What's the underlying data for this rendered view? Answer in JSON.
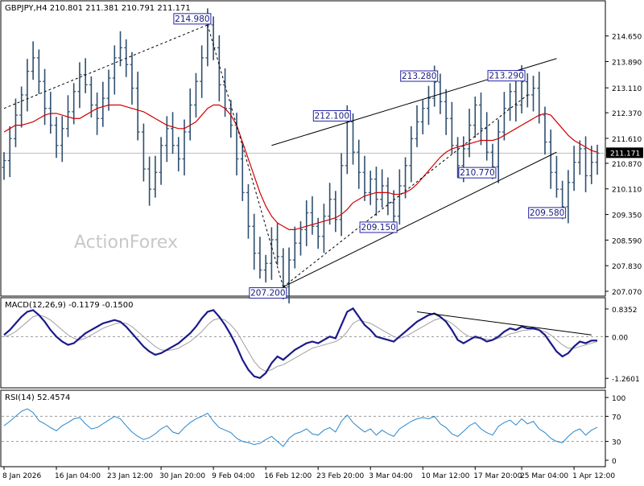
{
  "chart_data": [
    {
      "type": "ohlc",
      "title": "GBPJPY,H4  210.801 211.381 210.791 211.171",
      "watermark": "ActionForex",
      "ylim": [
        207.07,
        215.24
      ],
      "ticks": [
        "214.650",
        "213.890",
        "213.110",
        "212.370",
        "211.610",
        "210.870",
        "210.110",
        "209.350",
        "208.590",
        "207.830",
        "207.070"
      ],
      "current_price": "211.171",
      "colors": {
        "bars": "#2f4f6f",
        "ma": "#d10000",
        "trendline": "#000000",
        "label_border": "#2222aa"
      },
      "closes": [
        210.95,
        211.6,
        212.3,
        212.9,
        213.6,
        214.0,
        213.3,
        212.5,
        212.0,
        211.4,
        211.9,
        212.4,
        213.0,
        213.5,
        213.2,
        212.6,
        212.2,
        212.8,
        213.4,
        214.0,
        214.3,
        213.8,
        213.1,
        211.8,
        210.7,
        210.1,
        210.6,
        211.4,
        211.9,
        211.4,
        211.0,
        211.8,
        212.6,
        213.3,
        214.0,
        214.98,
        214.3,
        213.2,
        212.5,
        212.0,
        211.0,
        210.0,
        209.0,
        208.2,
        207.7,
        207.9,
        208.6,
        208.1,
        207.2,
        208.0,
        208.5,
        208.9,
        209.4,
        209.0,
        208.7,
        209.3,
        209.8,
        209.2,
        210.8,
        212.1,
        211.2,
        210.6,
        210.0,
        210.4,
        209.8,
        210.2,
        209.7,
        209.3,
        210.2,
        210.8,
        211.6,
        212.1,
        212.5,
        212.8,
        213.28,
        212.7,
        212.2,
        211.4,
        210.8,
        211.3,
        212.0,
        212.6,
        211.9,
        211.2,
        210.77,
        211.8,
        212.5,
        213.0,
        212.6,
        213.29,
        212.9,
        213.1,
        212.3,
        211.5,
        210.6,
        210.1,
        209.58,
        210.3,
        210.9,
        211.3,
        210.5,
        210.9,
        211.171
      ],
      "ma": [
        211.8,
        211.9,
        212.0,
        212.0,
        212.05,
        212.1,
        212.2,
        212.3,
        212.35,
        212.35,
        212.3,
        212.25,
        212.2,
        212.2,
        212.3,
        212.4,
        212.5,
        212.55,
        212.6,
        212.6,
        212.6,
        212.55,
        212.5,
        212.45,
        212.4,
        212.3,
        212.2,
        212.1,
        212.0,
        211.95,
        211.9,
        211.9,
        212.0,
        212.1,
        212.3,
        212.5,
        212.6,
        212.6,
        212.5,
        212.3,
        212.0,
        211.5,
        211.0,
        210.5,
        210.0,
        209.6,
        209.3,
        209.1,
        209.0,
        208.9,
        208.9,
        208.95,
        209.0,
        209.05,
        209.1,
        209.15,
        209.2,
        209.25,
        209.35,
        209.5,
        209.7,
        209.8,
        209.9,
        209.95,
        210.0,
        210.0,
        210.0,
        209.95,
        209.95,
        210.0,
        210.1,
        210.25,
        210.45,
        210.65,
        210.85,
        211.05,
        211.2,
        211.3,
        211.35,
        211.4,
        211.45,
        211.5,
        211.55,
        211.55,
        211.55,
        211.6,
        211.7,
        211.8,
        211.9,
        212.0,
        212.1,
        212.2,
        212.3,
        212.35,
        212.3,
        212.1,
        211.9,
        211.7,
        211.55,
        211.45,
        211.35,
        211.25,
        211.2
      ],
      "annotations": [
        {
          "label": "214.980",
          "x_index": 35,
          "value": 214.98
        },
        {
          "label": "212.100",
          "x_index": 59,
          "value": 212.1
        },
        {
          "label": "213.280",
          "x_index": 74,
          "value": 213.28
        },
        {
          "label": "213.290",
          "x_index": 89,
          "value": 213.29
        },
        {
          "label": "210.770",
          "x_index": 84,
          "value": 210.77
        },
        {
          "label": "209.150",
          "x_index": 67,
          "value": 209.15
        },
        {
          "label": "209.580",
          "x_index": 96,
          "value": 209.58
        },
        {
          "label": "207.200",
          "x_index": 48,
          "value": 207.2
        }
      ],
      "trendlines": [
        {
          "style": "dashed",
          "from": {
            "x_index": 0,
            "value": 212.5
          },
          "to": {
            "x_index": 35,
            "value": 214.98
          }
        },
        {
          "style": "dashed",
          "from": {
            "x_index": 35,
            "value": 214.98
          },
          "to": {
            "x_index": 48,
            "value": 207.2
          }
        },
        {
          "style": "dashed",
          "from": {
            "x_index": 48,
            "value": 207.2
          },
          "to": {
            "x_index": 90,
            "value": 212.9
          }
        },
        {
          "style": "solid",
          "from": {
            "x_index": 48,
            "value": 207.2
          },
          "to": {
            "x_index": 95,
            "value": 211.2
          }
        },
        {
          "style": "solid",
          "from": {
            "x_index": 46,
            "value": 211.4
          },
          "to": {
            "x_index": 95,
            "value": 213.98
          }
        }
      ]
    },
    {
      "type": "line",
      "title": "MACD(12,26,9) -0.1179 -0.1500",
      "ylim": [
        -1.45,
        0.98
      ],
      "ticks": [
        "0.8352",
        "0.00",
        "-1.2601"
      ],
      "series": [
        {
          "values": [
            0.05,
            0.2,
            0.4,
            0.6,
            0.75,
            0.8,
            0.65,
            0.45,
            0.2,
            0.0,
            -0.15,
            -0.25,
            -0.2,
            -0.05,
            0.1,
            0.2,
            0.3,
            0.4,
            0.45,
            0.5,
            0.45,
            0.3,
            0.1,
            -0.1,
            -0.3,
            -0.45,
            -0.55,
            -0.5,
            -0.4,
            -0.3,
            -0.2,
            -0.05,
            0.1,
            0.3,
            0.55,
            0.75,
            0.8,
            0.6,
            0.35,
            0.05,
            -0.3,
            -0.7,
            -1.0,
            -1.2,
            -1.25,
            -1.1,
            -0.8,
            -0.6,
            -0.7,
            -0.55,
            -0.4,
            -0.3,
            -0.2,
            -0.15,
            -0.2,
            -0.1,
            0.0,
            -0.05,
            0.35,
            0.75,
            0.85,
            0.6,
            0.35,
            0.2,
            0.0,
            -0.05,
            -0.1,
            -0.15,
            0.0,
            0.15,
            0.3,
            0.45,
            0.55,
            0.65,
            0.7,
            0.6,
            0.45,
            0.2,
            -0.1,
            -0.2,
            -0.1,
            0.0,
            -0.05,
            -0.15,
            -0.1,
            0.0,
            0.15,
            0.25,
            0.2,
            0.3,
            0.25,
            0.25,
            0.2,
            0.05,
            -0.2,
            -0.45,
            -0.6,
            -0.5,
            -0.3,
            -0.15,
            -0.2,
            -0.12,
            -0.1179
          ]
        },
        {
          "values": [
            0.0,
            0.05,
            0.15,
            0.3,
            0.45,
            0.6,
            0.65,
            0.6,
            0.5,
            0.35,
            0.2,
            0.05,
            -0.05,
            -0.1,
            -0.05,
            0.05,
            0.15,
            0.25,
            0.32,
            0.38,
            0.42,
            0.4,
            0.3,
            0.15,
            0.0,
            -0.15,
            -0.3,
            -0.4,
            -0.42,
            -0.4,
            -0.35,
            -0.25,
            -0.15,
            0.0,
            0.15,
            0.35,
            0.5,
            0.55,
            0.5,
            0.35,
            0.15,
            -0.15,
            -0.45,
            -0.75,
            -0.95,
            -1.05,
            -1.0,
            -0.9,
            -0.85,
            -0.75,
            -0.65,
            -0.55,
            -0.45,
            -0.35,
            -0.3,
            -0.25,
            -0.2,
            -0.15,
            -0.05,
            0.15,
            0.4,
            0.5,
            0.45,
            0.4,
            0.3,
            0.2,
            0.1,
            0.0,
            -0.05,
            0.0,
            0.1,
            0.2,
            0.3,
            0.4,
            0.5,
            0.55,
            0.5,
            0.4,
            0.25,
            0.1,
            0.0,
            -0.05,
            -0.05,
            -0.08,
            -0.1,
            -0.05,
            0.0,
            0.08,
            0.12,
            0.18,
            0.2,
            0.22,
            0.2,
            0.15,
            0.05,
            -0.1,
            -0.25,
            -0.35,
            -0.35,
            -0.3,
            -0.25,
            -0.2,
            -0.15
          ]
        }
      ]
    },
    {
      "type": "line",
      "title": "RSI(14) 52.4574",
      "ylim": [
        0,
        100
      ],
      "ticks": [
        "100",
        "70",
        "30",
        "0"
      ],
      "values": [
        55,
        62,
        70,
        78,
        82,
        76,
        63,
        58,
        52,
        47,
        55,
        60,
        66,
        68,
        58,
        50,
        52,
        58,
        64,
        70,
        66,
        55,
        45,
        38,
        33,
        36,
        42,
        50,
        55,
        45,
        42,
        52,
        60,
        66,
        70,
        75,
        62,
        52,
        48,
        44,
        35,
        30,
        28,
        25,
        27,
        33,
        38,
        30,
        22,
        35,
        42,
        45,
        50,
        42,
        40,
        48,
        52,
        45,
        62,
        72,
        60,
        52,
        45,
        50,
        40,
        48,
        42,
        38,
        50,
        56,
        62,
        66,
        68,
        66,
        70,
        58,
        52,
        42,
        38,
        46,
        55,
        60,
        50,
        44,
        40,
        54,
        60,
        64,
        56,
        66,
        58,
        62,
        50,
        44,
        35,
        30,
        28,
        38,
        46,
        50,
        40,
        48,
        52.4574
      ]
    }
  ],
  "x_axis_labels": [
    "8 Jan 2026",
    "16 Jan 04:00",
    "23 Jan 12:00",
    "30 Jan 20:00",
    "9 Feb 04:00",
    "16 Feb 12:00",
    "23 Feb 20:00",
    "3 Mar 04:00",
    "10 Mar 12:00",
    "17 Mar 20:00",
    "25 Mar 04:00",
    "1 Apr 12:00"
  ]
}
